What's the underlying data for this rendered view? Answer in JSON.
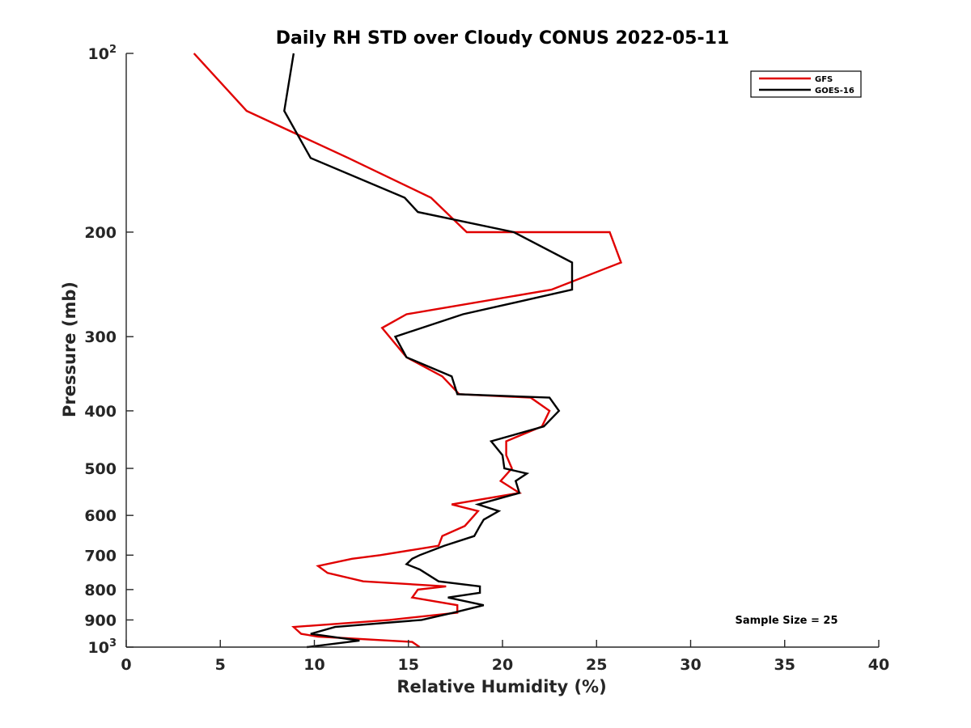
{
  "chart_data": {
    "type": "line",
    "title": "Daily RH STD over Cloudy CONUS 2022-05-11",
    "xlabel": "Relative Humidity (%)",
    "ylabel": "Pressure (mb)",
    "xlim": [
      0,
      40
    ],
    "ylim": [
      100,
      1000
    ],
    "yscale": "log",
    "y_reversed": true,
    "grid": false,
    "x_ticks": [
      "0",
      "5",
      "10",
      "15",
      "20",
      "25",
      "30",
      "35",
      "40"
    ],
    "y_ticks": [
      {
        "value": 100,
        "base": "10",
        "exp": "2"
      },
      {
        "value": 200,
        "text": "200"
      },
      {
        "value": 300,
        "text": "300"
      },
      {
        "value": 400,
        "text": "400"
      },
      {
        "value": 500,
        "text": "500"
      },
      {
        "value": 600,
        "text": "600"
      },
      {
        "value": 700,
        "text": "700"
      },
      {
        "value": 800,
        "text": "800"
      },
      {
        "value": 900,
        "text": "900"
      },
      {
        "value": 1000,
        "base": "10",
        "exp": "3"
      }
    ],
    "legend_position": "top-right",
    "annotation": "Sample Size = 25",
    "series": [
      {
        "name": "GFS",
        "color": "#e00000",
        "points": [
          [
            3.6,
            100
          ],
          [
            6.4,
            125
          ],
          [
            11.8,
            150
          ],
          [
            16.2,
            175
          ],
          [
            18.1,
            200
          ],
          [
            25.7,
            200
          ],
          [
            26.3,
            225
          ],
          [
            22.6,
            250
          ],
          [
            14.9,
            275
          ],
          [
            13.6,
            290
          ],
          [
            14.9,
            325
          ],
          [
            16.8,
            350
          ],
          [
            17.7,
            375
          ],
          [
            21.5,
            380
          ],
          [
            22.5,
            400
          ],
          [
            22.1,
            425
          ],
          [
            20.2,
            450
          ],
          [
            20.2,
            475
          ],
          [
            20.5,
            500
          ],
          [
            19.9,
            525
          ],
          [
            20.9,
            550
          ],
          [
            17.3,
            575
          ],
          [
            18.7,
            590
          ],
          [
            18.5,
            600
          ],
          [
            18.0,
            625
          ],
          [
            16.8,
            650
          ],
          [
            16.6,
            675
          ],
          [
            13.5,
            700
          ],
          [
            12.0,
            710
          ],
          [
            10.2,
            730
          ],
          [
            10.7,
            750
          ],
          [
            12.6,
            775
          ],
          [
            17.0,
            790
          ],
          [
            15.5,
            800
          ],
          [
            15.2,
            825
          ],
          [
            17.6,
            850
          ],
          [
            17.6,
            875
          ],
          [
            14.0,
            900
          ],
          [
            8.9,
            925
          ],
          [
            9.3,
            950
          ],
          [
            10.2,
            960
          ],
          [
            15.2,
            980
          ],
          [
            15.6,
            1000
          ]
        ]
      },
      {
        "name": "GOES-16",
        "color": "#000000",
        "points": [
          [
            8.9,
            100
          ],
          [
            8.4,
            125
          ],
          [
            9.8,
            150
          ],
          [
            14.8,
            175
          ],
          [
            15.5,
            185
          ],
          [
            20.6,
            200
          ],
          [
            23.7,
            225
          ],
          [
            23.7,
            250
          ],
          [
            17.9,
            275
          ],
          [
            14.3,
            300
          ],
          [
            14.9,
            325
          ],
          [
            17.3,
            350
          ],
          [
            17.6,
            375
          ],
          [
            22.5,
            380
          ],
          [
            23.0,
            400
          ],
          [
            22.2,
            425
          ],
          [
            19.4,
            450
          ],
          [
            20.0,
            475
          ],
          [
            20.1,
            500
          ],
          [
            21.3,
            510
          ],
          [
            20.7,
            525
          ],
          [
            20.9,
            550
          ],
          [
            18.7,
            575
          ],
          [
            19.8,
            590
          ],
          [
            19.0,
            610
          ],
          [
            18.8,
            625
          ],
          [
            18.5,
            650
          ],
          [
            16.9,
            675
          ],
          [
            15.6,
            700
          ],
          [
            15.2,
            710
          ],
          [
            14.9,
            725
          ],
          [
            15.6,
            740
          ],
          [
            16.6,
            775
          ],
          [
            18.8,
            790
          ],
          [
            18.8,
            810
          ],
          [
            17.1,
            825
          ],
          [
            19.0,
            850
          ],
          [
            17.4,
            875
          ],
          [
            15.7,
            900
          ],
          [
            11.1,
            925
          ],
          [
            9.8,
            950
          ],
          [
            12.4,
            975
          ],
          [
            9.6,
            1000
          ]
        ]
      }
    ]
  }
}
